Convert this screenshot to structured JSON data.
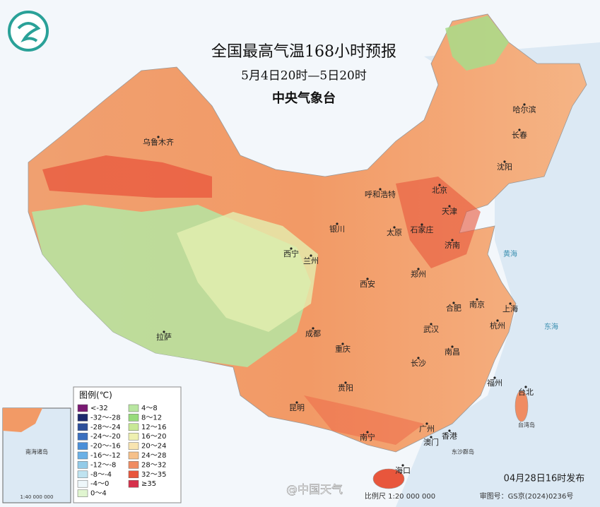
{
  "header": {
    "title": "全国最高气温168小时预报",
    "subtitle": "5月4日20时—5日20时",
    "agency": "中央气象台"
  },
  "legend": {
    "title": "图例(℃)",
    "items": [
      {
        "label": "<-32",
        "color": "#7a1a73"
      },
      {
        "label": "-32～-28",
        "color": "#1d2a6e"
      },
      {
        "label": "-28～-24",
        "color": "#2d4f9a"
      },
      {
        "label": "-24～-20",
        "color": "#3a6fbf"
      },
      {
        "label": "-20～-16",
        "color": "#4a8fd8"
      },
      {
        "label": "-16～-12",
        "color": "#6ab0e6"
      },
      {
        "label": "-12～-8",
        "color": "#93cbe8"
      },
      {
        "label": "-8～-4",
        "color": "#bfe3f0"
      },
      {
        "label": "-4～0",
        "color": "#eef7fa"
      },
      {
        "label": "0～4",
        "color": "#e0f5d0"
      },
      {
        "label": "4～8",
        "color": "#b8e6a0"
      },
      {
        "label": "8～12",
        "color": "#98db7c"
      },
      {
        "label": "12～16",
        "color": "#c8e896"
      },
      {
        "label": "16～20",
        "color": "#eef0b0"
      },
      {
        "label": "20～24",
        "color": "#f8e4b0"
      },
      {
        "label": "24～28",
        "color": "#f6c08a"
      },
      {
        "label": "28～32",
        "color": "#f08c62"
      },
      {
        "label": "32～35",
        "color": "#e8563c"
      },
      {
        "label": "≥35",
        "color": "#d6304a"
      }
    ]
  },
  "cities": [
    "乌鲁木齐",
    "哈尔滨",
    "长春",
    "沈阳",
    "北京",
    "呼和浩特",
    "天津",
    "银川",
    "石家庄",
    "太原",
    "济南",
    "西宁",
    "兰州",
    "郑州",
    "西安",
    "合肥",
    "南京",
    "上海",
    "杭州",
    "成都",
    "武汉",
    "拉萨",
    "重庆",
    "南昌",
    "长沙",
    "福州",
    "台北",
    "贵阳",
    "昆明",
    "南宁",
    "广州",
    "香港",
    "澳门",
    "海口"
  ],
  "seas": [
    "黄海",
    "东海"
  ],
  "islands": [
    "台湾岛",
    "东沙群岛"
  ],
  "inset": {
    "label": "南海诸岛",
    "scale": "1:40 000 000"
  },
  "footer": {
    "issued": "04月28日16时发布",
    "scale": "比例尺 1:20 000 000",
    "review": "审图号：GS京(2024)0236号",
    "watermark": "@中国天气"
  }
}
